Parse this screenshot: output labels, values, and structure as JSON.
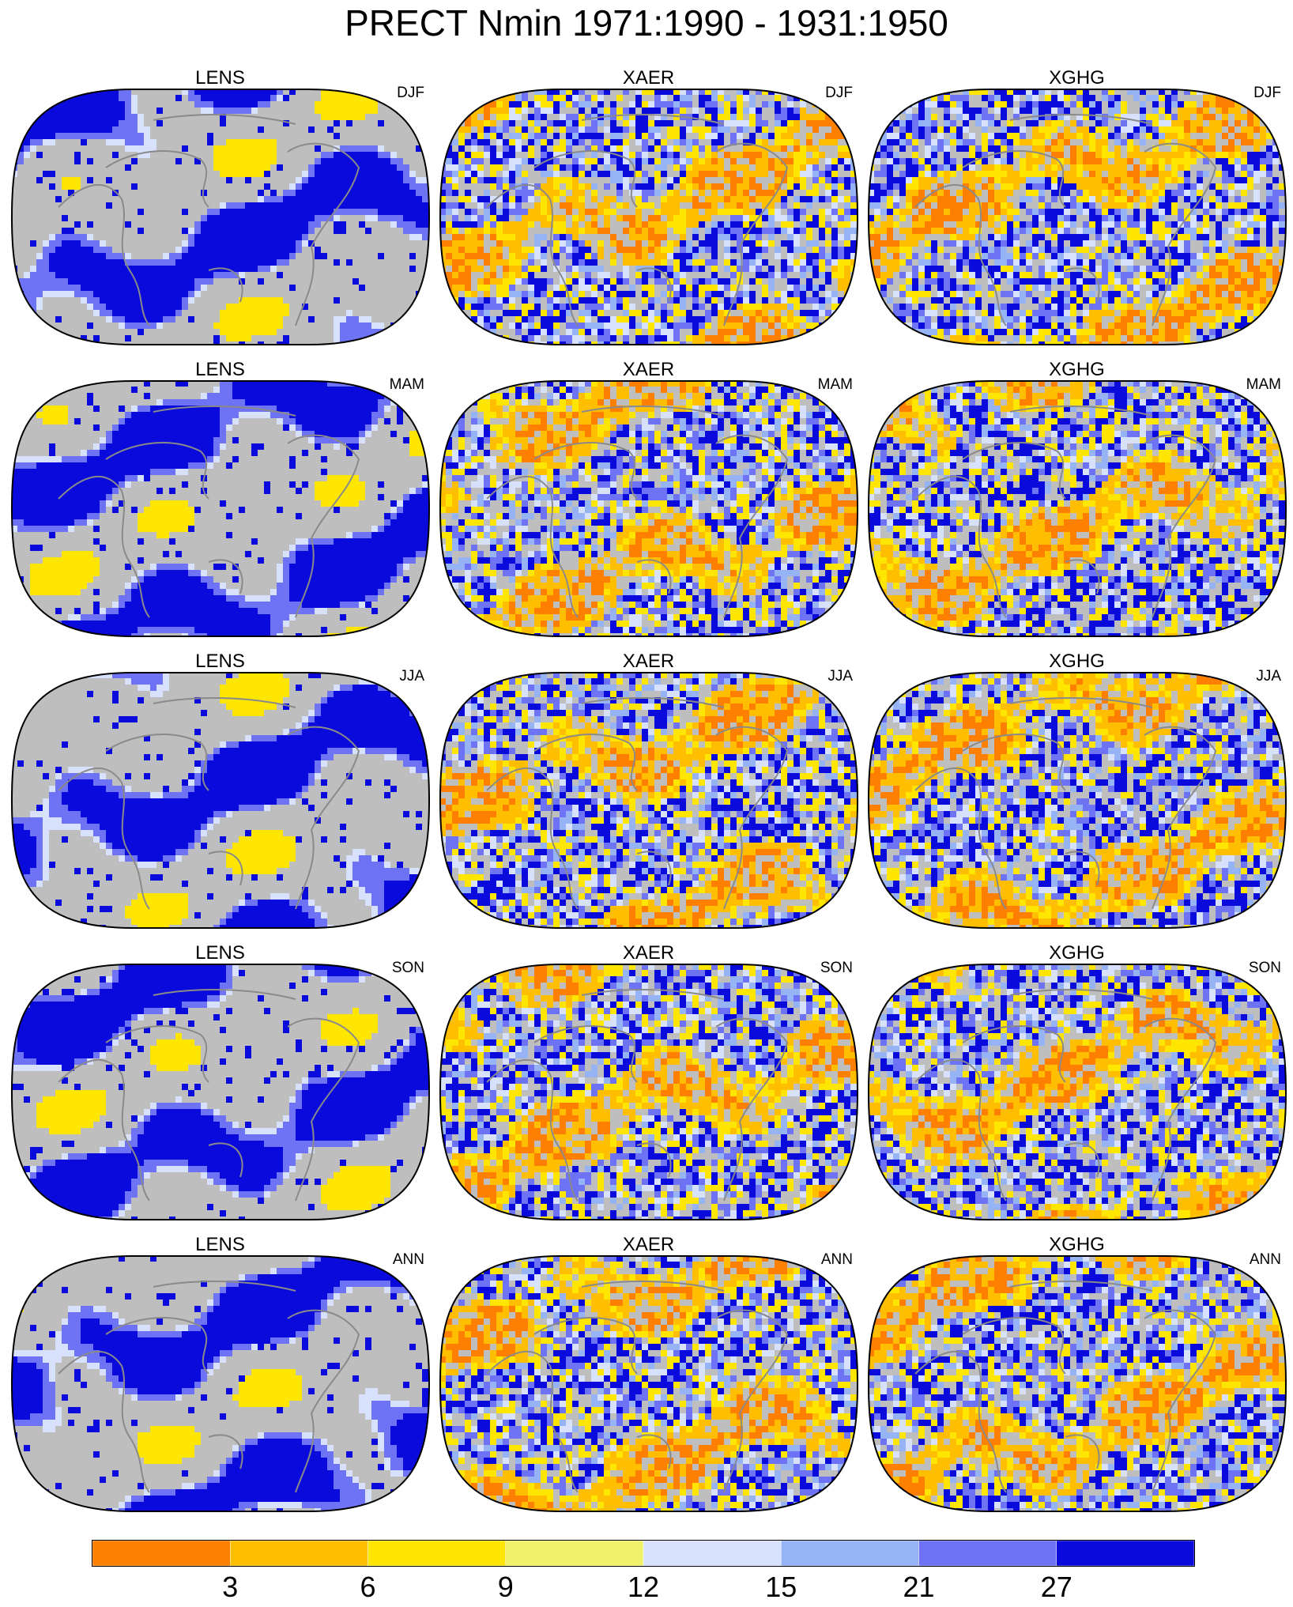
{
  "title": "PRECT Nmin 1971:1990 - 1931:1950",
  "colors": {
    "missing": "#bebebe",
    "coast": "#8a8a8a",
    "bins": [
      "#ff7f00",
      "#ffbf00",
      "#ffe600",
      "#f2f26a",
      "#d7e1fb",
      "#96b4f5",
      "#6e73f5",
      "#0a0adc"
    ]
  },
  "chart_data": [
    {
      "type": "heatmap",
      "title": "LENS",
      "season": "DJF"
    },
    {
      "type": "heatmap",
      "title": "XAER",
      "season": "DJF"
    },
    {
      "type": "heatmap",
      "title": "XGHG",
      "season": "DJF"
    },
    {
      "type": "heatmap",
      "title": "LENS",
      "season": "MAM"
    },
    {
      "type": "heatmap",
      "title": "XAER",
      "season": "MAM"
    },
    {
      "type": "heatmap",
      "title": "XGHG",
      "season": "MAM"
    },
    {
      "type": "heatmap",
      "title": "LENS",
      "season": "JJA"
    },
    {
      "type": "heatmap",
      "title": "XAER",
      "season": "JJA"
    },
    {
      "type": "heatmap",
      "title": "XGHG",
      "season": "JJA"
    },
    {
      "type": "heatmap",
      "title": "LENS",
      "season": "SON"
    },
    {
      "type": "heatmap",
      "title": "XAER",
      "season": "SON"
    },
    {
      "type": "heatmap",
      "title": "XGHG",
      "season": "SON"
    },
    {
      "type": "heatmap",
      "title": "LENS",
      "season": "ANN"
    },
    {
      "type": "heatmap",
      "title": "XAER",
      "season": "ANN"
    },
    {
      "type": "heatmap",
      "title": "XGHG",
      "season": "ANN"
    }
  ],
  "colorbar": {
    "tick_labels": [
      "3",
      "6",
      "9",
      "12",
      "15",
      "21",
      "27"
    ],
    "bin_count": 8
  }
}
